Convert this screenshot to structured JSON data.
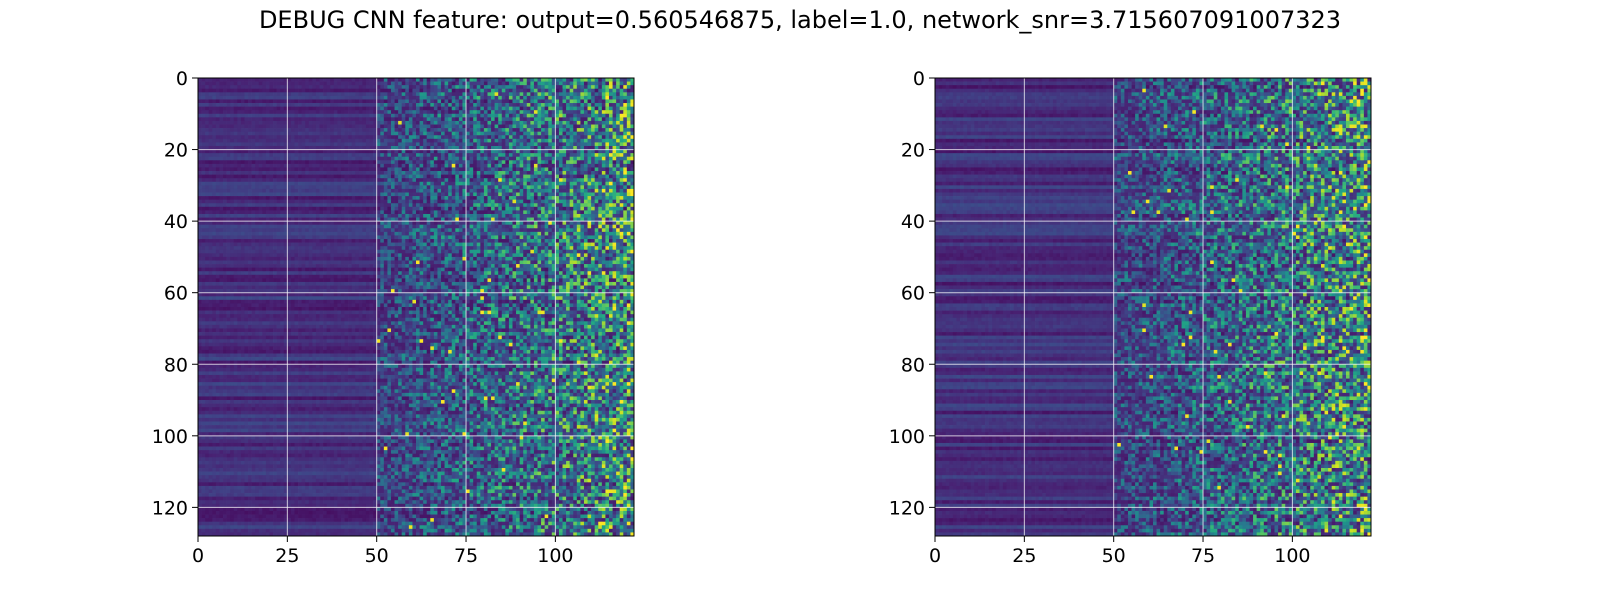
{
  "figure": {
    "title": "DEBUG CNN feature: output=0.560546875, label=1.0, network_snr=3.715607091007323"
  },
  "chart_data": [
    {
      "type": "heatmap",
      "colormap": "viridis",
      "n_rows": 128,
      "n_cols": 122,
      "xlim": [
        0,
        122
      ],
      "ylim": [
        128,
        0
      ],
      "x_ticks": [
        0,
        25,
        50,
        75,
        100
      ],
      "y_ticks": [
        0,
        20,
        40,
        60,
        80,
        100,
        120
      ],
      "grid": true,
      "pattern_description_seed": 11,
      "bright_region_start_col": 50
    },
    {
      "type": "heatmap",
      "colormap": "viridis",
      "n_rows": 128,
      "n_cols": 122,
      "xlim": [
        0,
        122
      ],
      "ylim": [
        128,
        0
      ],
      "x_ticks": [
        0,
        25,
        50,
        75,
        100
      ],
      "y_ticks": [
        0,
        20,
        40,
        60,
        80,
        100,
        120
      ],
      "grid": true,
      "pattern_description_seed": 47,
      "bright_region_start_col": 50
    }
  ],
  "colors": {
    "grid": "#ffffff",
    "axis": "#000000"
  }
}
